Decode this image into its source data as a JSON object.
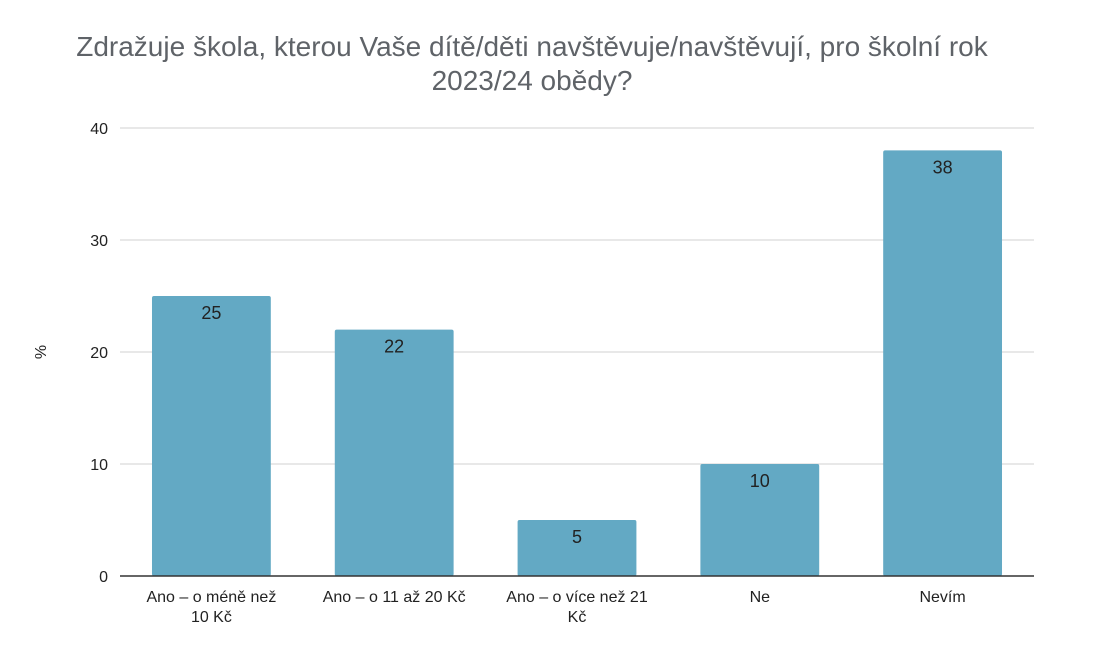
{
  "chart_data": {
    "type": "bar",
    "title_lines": [
      "Zdražuje škola, kterou Vaše dítě/děti navštěvuje/navštěvují, pro školní rok",
      "2023/24 obědy?"
    ],
    "categories": [
      [
        "Ano – o méně než",
        "10 Kč"
      ],
      [
        "Ano – o 11 až 20 Kč"
      ],
      [
        "Ano – o více než 21",
        "Kč"
      ],
      [
        "Ne"
      ],
      [
        "Nevím"
      ]
    ],
    "values": [
      25,
      22,
      5,
      10,
      38
    ],
    "ylabel": "%",
    "xlabel": "",
    "ylim": [
      0,
      40
    ],
    "yticks": [
      0,
      10,
      20,
      30,
      40
    ],
    "grid": true,
    "legend": "none",
    "colors": {
      "bar": "#63a9c4",
      "grid": "#d0d0d0",
      "axis": "#333333"
    }
  }
}
